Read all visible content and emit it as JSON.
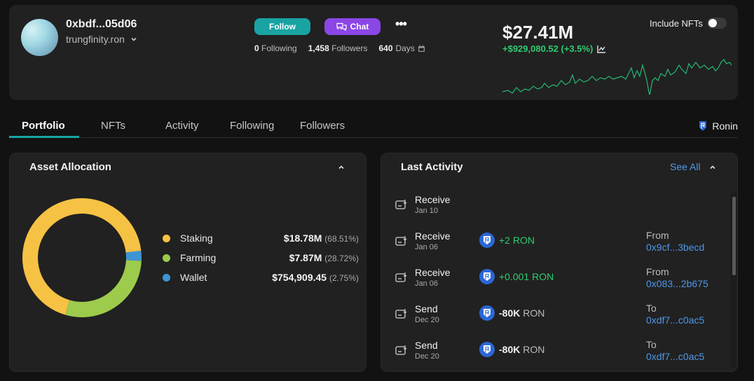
{
  "profile": {
    "address": "0xbdf...05d06",
    "name": "trungfinity.ron",
    "follow_label": "Follow",
    "chat_label": "Chat",
    "more_label": "•••",
    "following_count": "0",
    "following_label": "Following",
    "followers_count": "1,458",
    "followers_label": "Followers",
    "days_count": "640",
    "days_label": "Days",
    "net_worth": "$27.41M",
    "change": "+$929,080.52 (+3.5%)",
    "include_nfts_label": "Include NFTs",
    "include_nfts_on": false
  },
  "tabs": [
    {
      "label": "Portfolio",
      "active": true
    },
    {
      "label": "NFTs",
      "active": false
    },
    {
      "label": "Activity",
      "active": false
    },
    {
      "label": "Following",
      "active": false
    },
    {
      "label": "Followers",
      "active": false
    }
  ],
  "chain": {
    "label": "Ronin",
    "icon": "ronin-icon"
  },
  "allocation": {
    "title": "Asset Allocation",
    "items": [
      {
        "name": "Staking",
        "value": "$18.78M",
        "pct": "(68.51%)",
        "share": 68.51,
        "color": "#f6c244"
      },
      {
        "name": "Farming",
        "value": "$7.87M",
        "pct": "(28.72%)",
        "share": 28.72,
        "color": "#9dcb4b"
      },
      {
        "name": "Wallet",
        "value": "$754,909.45",
        "pct": "(2.75%)",
        "share": 2.75,
        "color": "#3d95d6"
      }
    ]
  },
  "activity": {
    "title": "Last Activity",
    "see_all": "See All",
    "items": [
      {
        "type": "Receive",
        "date": "Jan 10",
        "amount": "",
        "unit": "",
        "direction": "none",
        "cp_label": "",
        "cp_addr": ""
      },
      {
        "type": "Receive",
        "date": "Jan 06",
        "amount": "+2",
        "unit": "RON",
        "direction": "in",
        "cp_label": "From",
        "cp_addr": "0x9cf...3becd"
      },
      {
        "type": "Receive",
        "date": "Jan 06",
        "amount": "+0.001",
        "unit": "RON",
        "direction": "in",
        "cp_label": "From",
        "cp_addr": "0x083...2b675"
      },
      {
        "type": "Send",
        "date": "Dec 20",
        "amount": "-80K",
        "unit": "RON",
        "direction": "out",
        "cp_label": "To",
        "cp_addr": "0xdf7...c0ac5"
      },
      {
        "type": "Send",
        "date": "Dec 20",
        "amount": "-80K",
        "unit": "RON",
        "direction": "out",
        "cp_label": "To",
        "cp_addr": "0xdf7...c0ac5"
      }
    ]
  },
  "colors": {
    "accent": "#1aa3a3",
    "chat": "#8b46e6",
    "positive": "#2ecc71",
    "link": "#4f97e8"
  }
}
